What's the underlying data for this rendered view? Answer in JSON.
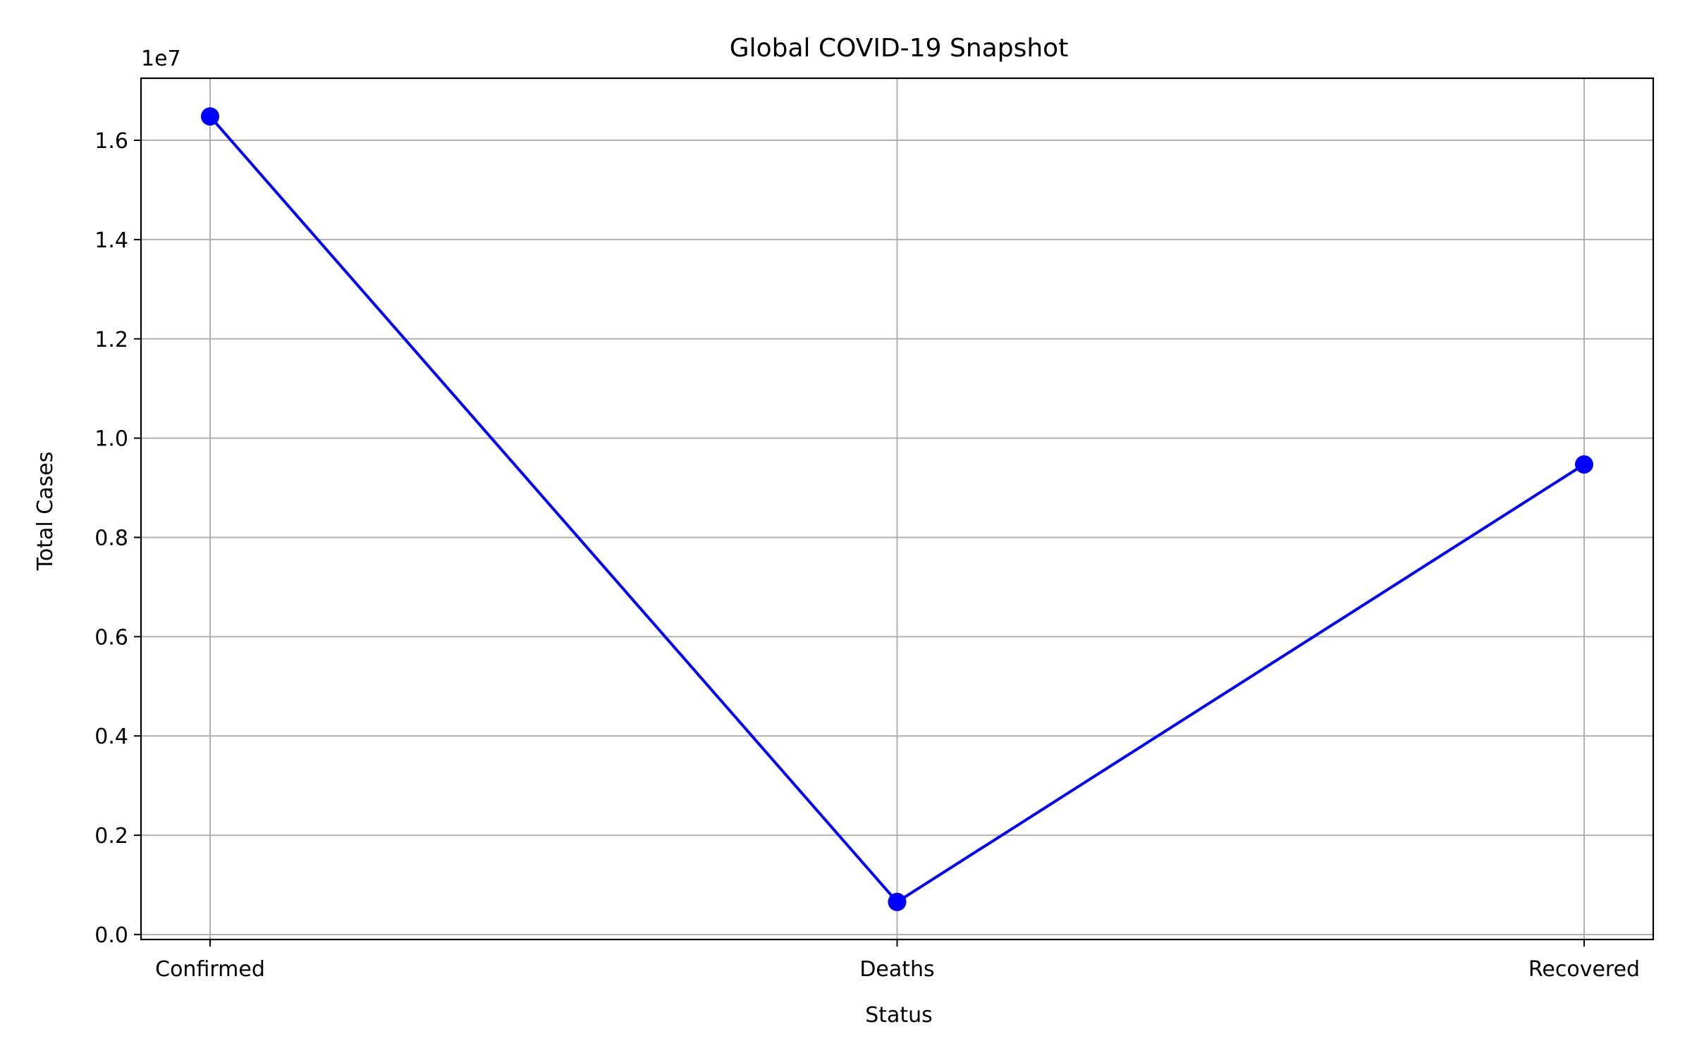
{
  "chart_data": {
    "type": "line",
    "title": "Global COVID-19 Snapshot",
    "xlabel": "Status",
    "ylabel": "Total Cases",
    "categories": [
      "Confirmed",
      "Deaths",
      "Recovered"
    ],
    "series": [
      {
        "values": [
          16480000,
          656000,
          9470000
        ],
        "color": "#0000ff",
        "marker": "circle"
      }
    ],
    "ylim": [
      -100000,
      17250000
    ],
    "yticks": [
      0,
      2000000,
      4000000,
      6000000,
      8000000,
      10000000,
      12000000,
      14000000,
      16000000
    ],
    "ytick_labels": [
      "0.0",
      "0.2",
      "0.4",
      "0.6",
      "0.8",
      "1.0",
      "1.2",
      "1.4",
      "1.6"
    ],
    "y_offset_label": "1e7",
    "grid": true,
    "legend": "none"
  }
}
